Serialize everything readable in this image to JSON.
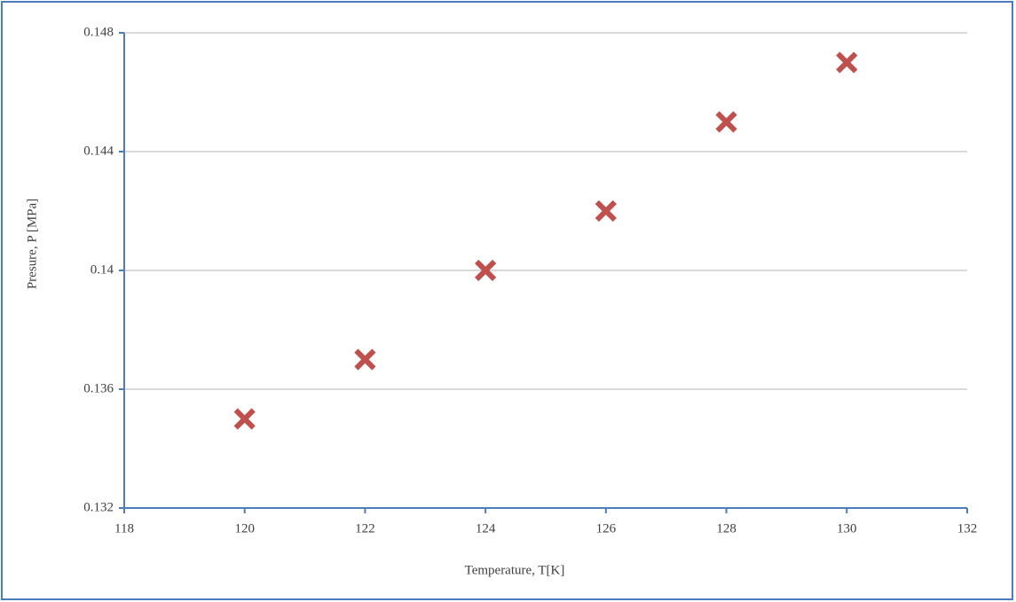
{
  "chart_data": {
    "type": "scatter",
    "x_label": "Temperature, T[K]",
    "y_label": "Presure, P [MPa]",
    "x": [
      120,
      122,
      124,
      126,
      128,
      130
    ],
    "values": [
      0.135,
      0.137,
      0.14,
      0.142,
      0.145,
      0.147
    ],
    "color": "#c0504d",
    "xlim": [
      118,
      132
    ],
    "xticks": [
      118,
      120,
      122,
      124,
      126,
      128,
      130,
      132
    ],
    "ylim": [
      0.132,
      0.148
    ],
    "yticks": [
      0.132,
      0.136,
      0.14,
      0.144,
      0.148
    ],
    "grid": true
  }
}
